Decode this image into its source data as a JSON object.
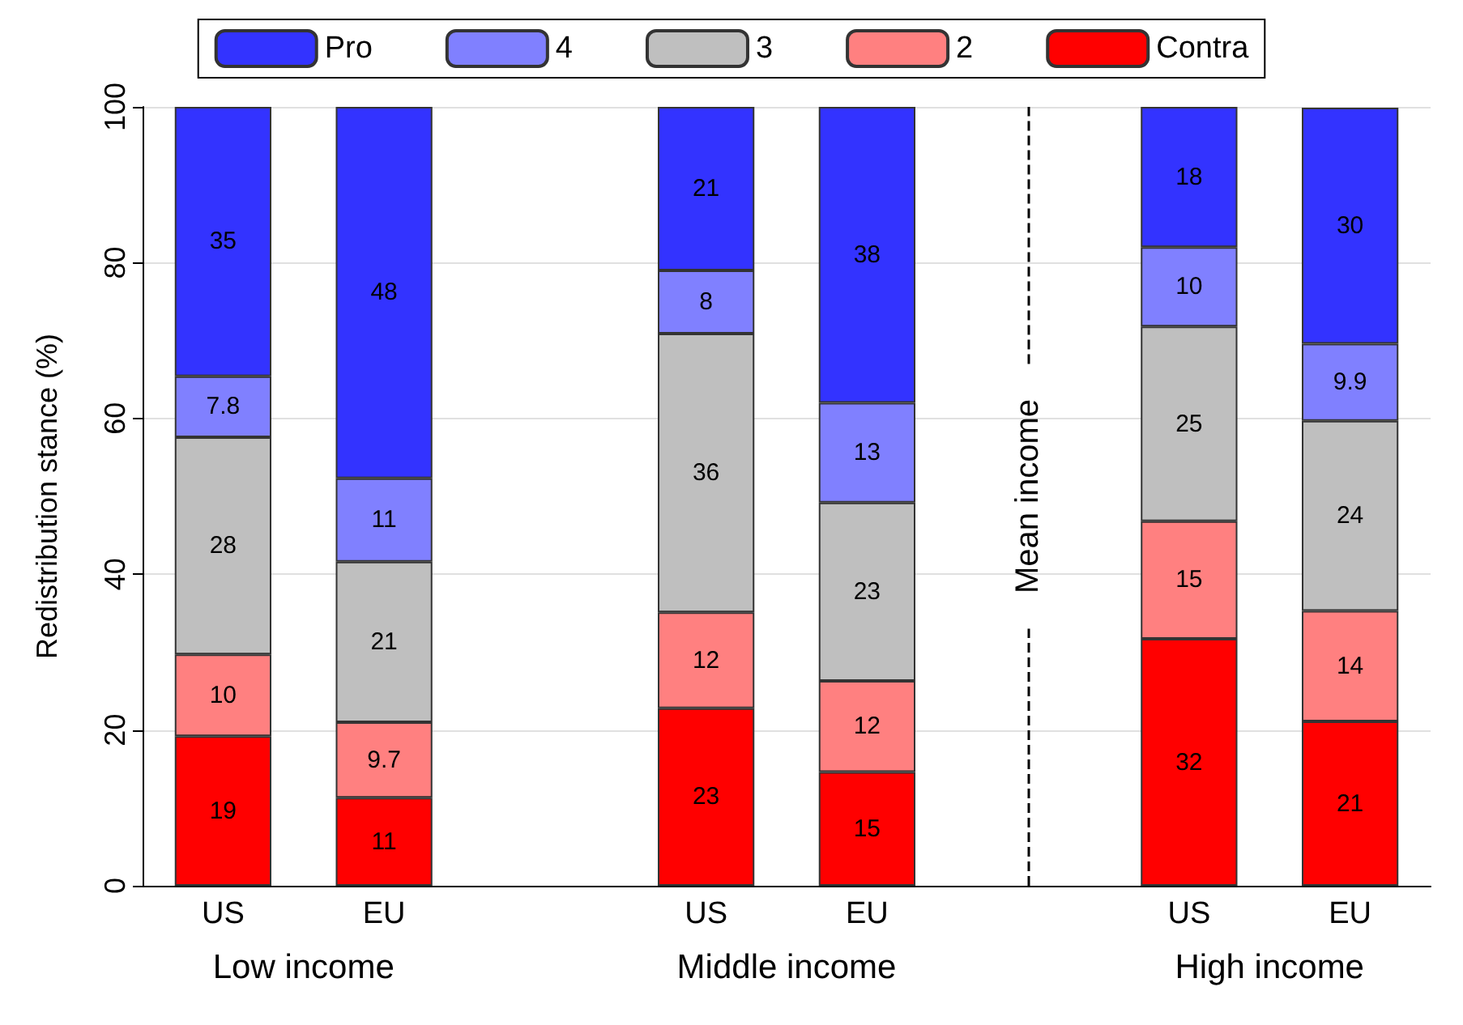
{
  "chart_data": {
    "type": "bar",
    "stacked": true,
    "ylabel": "Redistribution stance (%)",
    "categories": [
      "US",
      "EU",
      null,
      "US",
      "EU",
      null,
      "US",
      "EU"
    ],
    "series": [
      {
        "name": "Contra",
        "color": "#ff0000",
        "values": [
          19.2,
          11.3,
          null,
          22.8,
          14.6,
          null,
          31.7,
          21.1
        ],
        "value_labels": [
          "19",
          "11",
          null,
          "23",
          "15",
          null,
          "32",
          "21"
        ]
      },
      {
        "name": "2",
        "color": "#ff8080",
        "values": [
          10.5,
          9.7,
          null,
          12.3,
          11.7,
          null,
          15.1,
          14.2
        ],
        "value_labels": [
          "10",
          "9.7",
          null,
          "12",
          "12",
          null,
          "15",
          "14"
        ]
      },
      {
        "name": "3",
        "color": "#bfbfbf",
        "values": [
          27.9,
          20.6,
          null,
          35.8,
          22.9,
          null,
          25,
          24.4
        ],
        "value_labels": [
          "28",
          "21",
          null,
          "36",
          "23",
          null,
          "25",
          "24"
        ]
      },
      {
        "name": "4",
        "color": "#8080ff",
        "values": [
          7.8,
          10.7,
          null,
          8.1,
          12.8,
          null,
          10.2,
          9.9
        ],
        "value_labels": [
          "7.8",
          "11",
          null,
          "8",
          "13",
          null,
          "10",
          "9.9"
        ]
      },
      {
        "name": "Pro",
        "color": "#3333ff",
        "values": [
          34.6,
          47.7,
          null,
          21,
          38,
          null,
          18,
          30.3
        ],
        "value_labels": [
          "35",
          "48",
          null,
          "21",
          "38",
          null,
          "18",
          "30"
        ]
      }
    ],
    "ylim": [
      0,
      100
    ],
    "yticks": [
      0,
      20,
      40,
      60,
      80,
      100
    ],
    "grid": "y",
    "legend": "top",
    "ref_lines": [
      {
        "axis": "x",
        "label": "Mean income",
        "line_style": "dashed",
        "color": "#000000"
      }
    ],
    "annotations": [
      "Low income",
      "Middle income",
      "High income"
    ]
  }
}
